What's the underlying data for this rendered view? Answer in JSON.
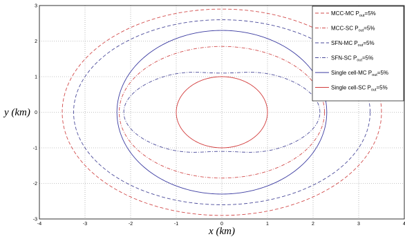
{
  "chart_data": {
    "type": "line",
    "title": "",
    "xlabel": "x (km)",
    "ylabel": "y (km)",
    "xlim": [
      -4,
      4
    ],
    "ylim": [
      -3,
      3
    ],
    "xticks": [
      -4,
      -3,
      -2,
      -1,
      0,
      1,
      2,
      3,
      4
    ],
    "yticks": [
      -3,
      -2,
      -1,
      0,
      1,
      2,
      3
    ],
    "xtick_labels": [
      "-4",
      "-3",
      "-2",
      "-1",
      "0",
      "1",
      "2",
      "3",
      "4"
    ],
    "ytick_labels": [
      "-3",
      "-2",
      "-1",
      "0",
      "1",
      "2",
      "3"
    ],
    "grid": true,
    "legend_position": "top-right",
    "series": [
      {
        "name": "MCC-MC P_out=5%",
        "legend_main": "MCC-MC P",
        "legend_sub": "out",
        "legend_tail": "=5%",
        "color": "#d24a4a",
        "dash": "dash",
        "shape": "ellipse",
        "rx": 3.5,
        "ry": 2.9
      },
      {
        "name": "MCC-SC P_out=5%",
        "legend_main": "MCC-SC P",
        "legend_sub": "out",
        "legend_tail": "=5%",
        "color": "#d24a4a",
        "dash": "dashdot",
        "shape": "ellipse",
        "rx": 2.25,
        "ry": 1.85
      },
      {
        "name": "SFN-MC P_out=5%",
        "legend_main": "SFN-MC P",
        "legend_sub": "out",
        "legend_tail": "=5%",
        "color": "#4a4a9a",
        "dash": "dash",
        "shape": "ellipse",
        "rx": 3.25,
        "ry": 2.6
      },
      {
        "name": "SFN-SC P_out=5%",
        "legend_main": "SFN-SC P",
        "legend_sub": "out",
        "legend_tail": "=5%",
        "color": "#4a4a9a",
        "dash": "dashdot",
        "shape": "pinched",
        "rx": 2.15,
        "ry": 1.25,
        "pinch_y": 1.1
      },
      {
        "name": "Single cell-MC P_out=5%",
        "legend_main": "Single cell-MC P",
        "legend_sub": "out",
        "legend_tail": "=5%",
        "color": "#3a3aa0",
        "dash": "solid",
        "shape": "ellipse",
        "rx": 2.3,
        "ry": 2.3
      },
      {
        "name": "Single cell-SC P_out=5%",
        "legend_main": "Single cell-SC P",
        "legend_sub": "out",
        "legend_tail": "=5%",
        "color": "#d23a3a",
        "dash": "solid",
        "shape": "ellipse",
        "rx": 1.0,
        "ry": 1.0
      }
    ]
  }
}
